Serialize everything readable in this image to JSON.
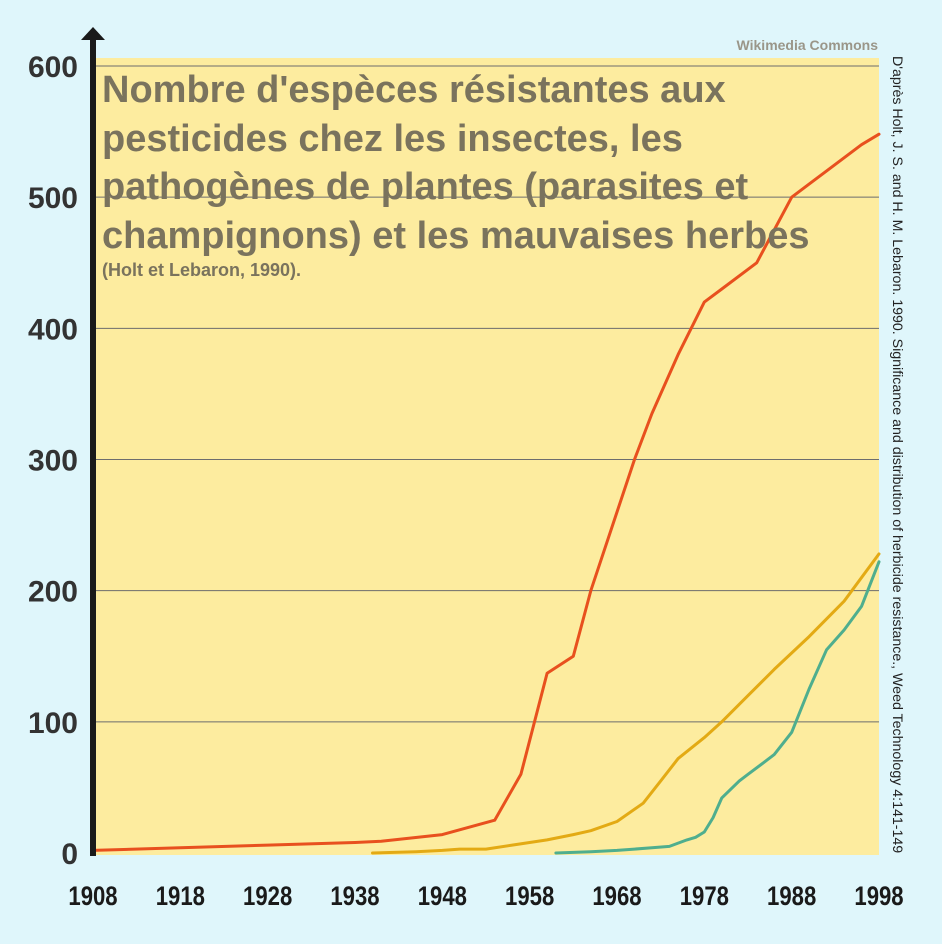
{
  "watermark": "Wikimedia Commons",
  "source_note": "D'après Holt, J. S. and H. M. Lebaron. 1990. Significance and distribution of herbicide resistance., Weed Technology 4:141-149",
  "chart_data": {
    "type": "line",
    "title": "Nombre d'espèces résistantes aux pesticides chez les insectes, les pathogènes de plantes (parasites et champignons) et les mauvaises herbes",
    "subtitle": "(Holt et Lebaron, 1990).",
    "xlabel": "",
    "ylabel": "",
    "xlim": [
      1908,
      1998
    ],
    "ylim": [
      0,
      600
    ],
    "x_ticks": [
      1908,
      1918,
      1928,
      1938,
      1948,
      1958,
      1968,
      1978,
      1988,
      1998
    ],
    "y_ticks": [
      0,
      100,
      200,
      300,
      400,
      500,
      600
    ],
    "grid": "horizontal",
    "colors": {
      "background": "#dff6fb",
      "plot_area": "#fdec9f",
      "axis": "#1a1a1a",
      "grid": "#6d6d6d"
    },
    "series": [
      {
        "color": "#e8501e",
        "x": [
          1908,
          1918,
          1928,
          1938,
          1941,
          1948,
          1954,
          1957,
          1960,
          1963,
          1965,
          1968,
          1970,
          1972,
          1975,
          1978,
          1980,
          1984,
          1988,
          1990,
          1992,
          1996,
          1998
        ],
        "y": [
          2,
          4,
          6,
          8,
          9,
          14,
          25,
          60,
          137,
          150,
          200,
          260,
          300,
          335,
          380,
          420,
          430,
          450,
          500,
          510,
          520,
          540,
          548
        ]
      },
      {
        "color": "#e3aa14",
        "x": [
          1940,
          1945,
          1948,
          1950,
          1953,
          1956,
          1960,
          1963,
          1965,
          1968,
          1971,
          1973,
          1975,
          1978,
          1980,
          1983,
          1986,
          1990,
          1994,
          1998
        ],
        "y": [
          0,
          1,
          2,
          3,
          3,
          6,
          10,
          14,
          17,
          24,
          38,
          55,
          72,
          88,
          100,
          120,
          140,
          165,
          192,
          228
        ]
      },
      {
        "color": "#4fae8e",
        "x": [
          1961,
          1965,
          1968,
          1970,
          1972,
          1974,
          1976,
          1977,
          1978,
          1979,
          1980,
          1982,
          1983,
          1985,
          1986,
          1988,
          1990,
          1992,
          1994,
          1996,
          1998
        ],
        "y": [
          0,
          1,
          2,
          3,
          4,
          5,
          10,
          12,
          16,
          27,
          42,
          55,
          60,
          70,
          75,
          92,
          125,
          155,
          170,
          188,
          222
        ]
      }
    ]
  }
}
